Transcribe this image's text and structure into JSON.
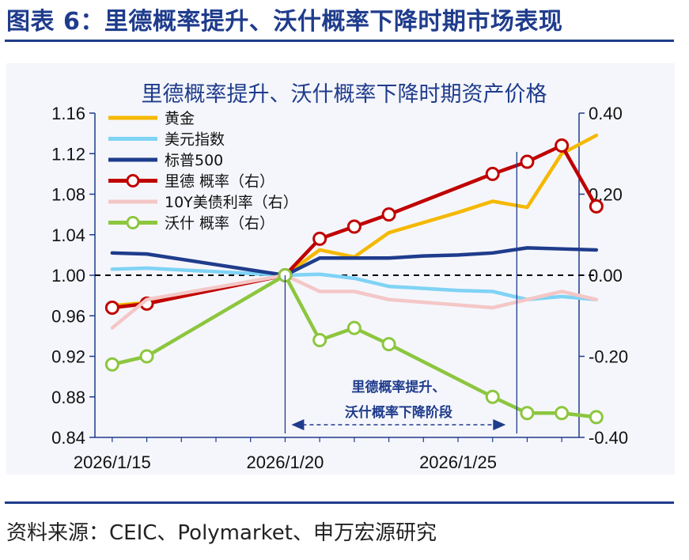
{
  "figure_title": "图表 6：里德概率提升、沃什概率下降时期市场表现",
  "source": "资料来源：CEIC、Polymarket、申万宏源研究",
  "colors": {
    "brand": "#1f3c8c",
    "gold": "#f5b800",
    "dxy": "#7fd3f5",
    "sp500": "#1f3c8c",
    "rieder": "#c00000",
    "yield": "#f4c7c7",
    "warsh": "#8cc63f"
  },
  "chart_data": {
    "type": "line",
    "title": "里德概率提升、沃什概率下降时期资产价格",
    "x": [
      15,
      16,
      17,
      18,
      19,
      20,
      21,
      22,
      23,
      24,
      25,
      26,
      27,
      28
    ],
    "x_tick_labels": [
      "2026/1/15",
      "2026/1/20",
      "2026/1/25"
    ],
    "x_tick_positions": [
      15,
      20,
      25
    ],
    "xlim": [
      14.5,
      28.5
    ],
    "y_left": {
      "range": [
        0.84,
        1.16
      ],
      "ticks": [
        "1.16",
        "1.12",
        "1.08",
        "1.04",
        "1.00",
        "0.96",
        "0.92",
        "0.88",
        "0.84"
      ]
    },
    "y_right": {
      "range": [
        -0.4,
        0.4
      ],
      "ticks": [
        "0.40",
        "0.20",
        "0.00",
        "-0.20",
        "-0.40"
      ]
    },
    "baseline": 1.0,
    "series": [
      {
        "name": "黄金",
        "axis": "left",
        "style": "line",
        "color": "#f5b800",
        "x": [
          15,
          16,
          20,
          21,
          22,
          23,
          24,
          25,
          26,
          27,
          28,
          29
        ],
        "values": [
          0.97,
          0.973,
          1.0,
          1.025,
          1.018,
          1.042,
          1.052,
          1.062,
          1.073,
          1.067,
          1.12,
          1.138
        ]
      },
      {
        "name": "美元指数",
        "axis": "left",
        "style": "line",
        "color": "#7fd3f5",
        "x": [
          15,
          16,
          20,
          21,
          22,
          23,
          24,
          25,
          26,
          27,
          28,
          29
        ],
        "values": [
          1.006,
          1.007,
          1.0,
          1.001,
          0.997,
          0.989,
          0.987,
          0.985,
          0.984,
          0.976,
          0.979,
          0.976
        ]
      },
      {
        "name": "标普500",
        "axis": "left",
        "style": "line",
        "color": "#1f3c8c",
        "x": [
          15,
          16,
          20,
          21,
          22,
          23,
          24,
          25,
          26,
          27,
          28,
          29
        ],
        "values": [
          1.022,
          1.021,
          1.0,
          1.017,
          1.017,
          1.017,
          1.019,
          1.02,
          1.022,
          1.027,
          1.026,
          1.025
        ]
      },
      {
        "name": "里德 概率（右）",
        "axis": "right",
        "style": "marker",
        "color": "#c00000",
        "x": [
          15,
          16,
          20,
          21,
          22,
          23,
          26,
          27,
          28,
          29
        ],
        "values": [
          -0.08,
          -0.07,
          0.0,
          0.09,
          0.12,
          0.15,
          0.25,
          0.28,
          0.32,
          0.17
        ]
      },
      {
        "name": "10Y美债利率（右）",
        "axis": "right",
        "style": "line",
        "color": "#f4c7c7",
        "x": [
          15,
          16,
          20,
          21,
          22,
          23,
          26,
          27,
          28,
          29
        ],
        "values": [
          -0.13,
          -0.06,
          0.0,
          -0.04,
          -0.04,
          -0.06,
          -0.08,
          -0.06,
          -0.04,
          -0.06
        ]
      },
      {
        "name": "沃什 概率（右）",
        "axis": "right",
        "style": "marker",
        "color": "#8cc63f",
        "x": [
          15,
          16,
          20,
          21,
          22,
          23,
          26,
          27,
          28,
          29
        ],
        "values": [
          -0.22,
          -0.2,
          0.0,
          -0.16,
          -0.13,
          -0.17,
          -0.3,
          -0.34,
          -0.34,
          -0.35
        ]
      }
    ],
    "annotation": {
      "line1": "里德概率提升、",
      "line2": "沃什概率下降阶段",
      "start_x": 20,
      "end_x": 26.7
    }
  }
}
